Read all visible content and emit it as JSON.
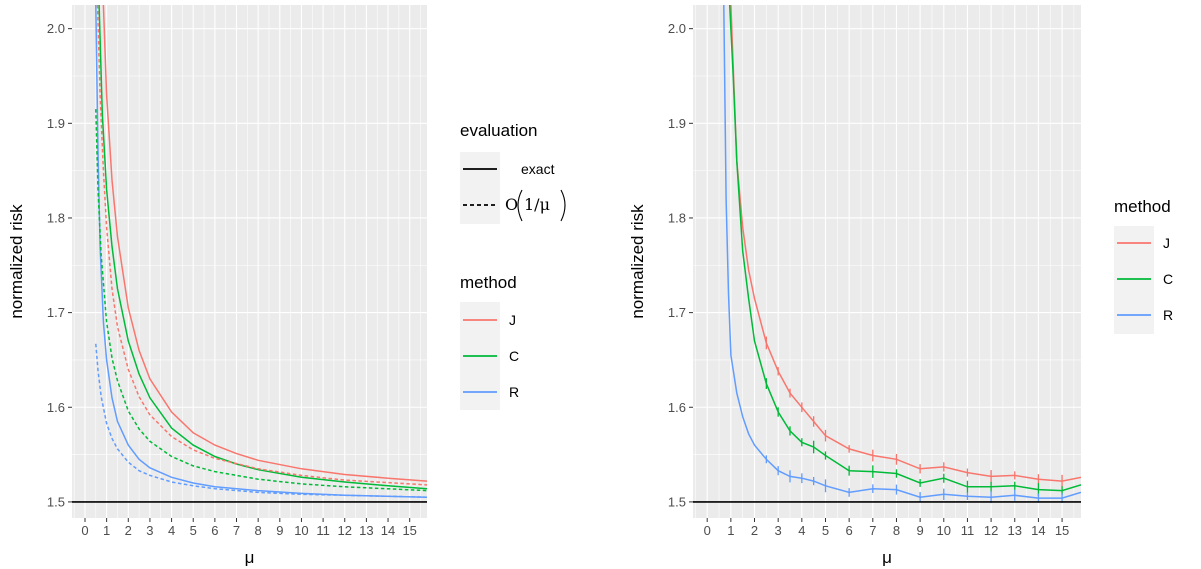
{
  "chart_data": [
    {
      "type": "line",
      "ylabel": "normalized risk",
      "xlabel": "μ",
      "xlim": [
        -0.6,
        15.8
      ],
      "ylim": [
        1.483,
        2.025
      ],
      "x_ticks": [
        "0",
        "1",
        "2",
        "3",
        "4",
        "5",
        "6",
        "7",
        "8",
        "9",
        "10",
        "11",
        "12",
        "13",
        "14",
        "15"
      ],
      "y_ticks": [
        "1.5",
        "1.6",
        "1.7",
        "1.8",
        "1.9",
        "2.0"
      ],
      "y_tick_values": [
        1.5,
        1.6,
        1.7,
        1.8,
        1.9,
        2.0
      ],
      "grid": true,
      "hline": 1.5,
      "series": [
        {
          "name": "J",
          "color": "#F8766D",
          "evaluation": "exact",
          "x": [
            0.85,
            1,
            1.25,
            1.5,
            2,
            2.5,
            3,
            4,
            5,
            6,
            7,
            8,
            10,
            12,
            14,
            15.8
          ],
          "y": [
            2.025,
            1.93,
            1.84,
            1.78,
            1.705,
            1.66,
            1.63,
            1.595,
            1.573,
            1.56,
            1.551,
            1.544,
            1.535,
            1.529,
            1.525,
            1.522
          ]
        },
        {
          "name": "C",
          "color": "#00BA38",
          "evaluation": "exact",
          "x": [
            0.65,
            0.8,
            1,
            1.25,
            1.5,
            2,
            2.5,
            3,
            4,
            5,
            6,
            7,
            8,
            10,
            12,
            14,
            15.8
          ],
          "y": [
            2.025,
            1.91,
            1.83,
            1.77,
            1.725,
            1.67,
            1.635,
            1.61,
            1.578,
            1.56,
            1.548,
            1.54,
            1.534,
            1.526,
            1.521,
            1.517,
            1.514
          ]
        },
        {
          "name": "R",
          "color": "#619CFF",
          "evaluation": "exact",
          "x": [
            0.5,
            0.6,
            0.7,
            0.85,
            1,
            1.25,
            1.5,
            2,
            2.5,
            3,
            4,
            5,
            6,
            8,
            10,
            12,
            15.8
          ],
          "y": [
            2.025,
            1.87,
            1.77,
            1.69,
            1.65,
            1.61,
            1.585,
            1.56,
            1.545,
            1.536,
            1.526,
            1.52,
            1.516,
            1.512,
            1.509,
            1.507,
            1.505
          ]
        },
        {
          "name": "J",
          "color": "#F8766D",
          "evaluation": "O(1/μ)",
          "x": [
            0.58,
            0.7,
            0.85,
            1,
            1.25,
            1.5,
            2,
            2.5,
            3,
            4,
            5,
            6,
            8,
            10,
            12,
            15.8
          ],
          "y": [
            2.025,
            1.93,
            1.85,
            1.79,
            1.725,
            1.685,
            1.64,
            1.611,
            1.592,
            1.569,
            1.555,
            1.546,
            1.535,
            1.528,
            1.523,
            1.518
          ]
        },
        {
          "name": "C",
          "color": "#00BA38",
          "evaluation": "O(1/μ)",
          "x": [
            0.5,
            0.6,
            0.75,
            1,
            1.25,
            1.5,
            2,
            2.5,
            3,
            4,
            5,
            6,
            8,
            10,
            12,
            15.8
          ],
          "y": [
            1.915,
            1.83,
            1.76,
            1.69,
            1.652,
            1.628,
            1.596,
            1.577,
            1.564,
            1.548,
            1.538,
            1.532,
            1.524,
            1.519,
            1.516,
            1.512
          ]
        },
        {
          "name": "R",
          "color": "#619CFF",
          "evaluation": "O(1/μ)",
          "x": [
            0.5,
            0.6,
            0.75,
            1,
            1.25,
            1.5,
            2,
            2.5,
            3,
            4,
            5,
            6,
            8,
            10,
            12,
            15.8
          ],
          "y": [
            1.667,
            1.639,
            1.611,
            1.583,
            1.567,
            1.556,
            1.542,
            1.533,
            1.528,
            1.521,
            1.517,
            1.514,
            1.51,
            1.508,
            1.507,
            1.505
          ]
        }
      ],
      "legends": [
        {
          "title": "evaluation",
          "entries": [
            {
              "label": "exact",
              "linetype": "solid"
            },
            {
              "label_prefix": "O",
              "label_frac": "1/μ",
              "linetype": "dashed"
            }
          ]
        },
        {
          "title": "method",
          "entries": [
            {
              "label": "J",
              "color": "#F8766D"
            },
            {
              "label": "C",
              "color": "#00BA38"
            },
            {
              "label": "R",
              "color": "#619CFF"
            }
          ]
        }
      ]
    },
    {
      "type": "line",
      "ylabel": "normalized risk",
      "xlabel": "μ",
      "xlim": [
        -0.6,
        15.8
      ],
      "ylim": [
        1.483,
        2.025
      ],
      "x_ticks": [
        "0",
        "1",
        "2",
        "3",
        "4",
        "5",
        "6",
        "7",
        "8",
        "9",
        "10",
        "11",
        "12",
        "13",
        "14",
        "15"
      ],
      "y_ticks": [
        "1.5",
        "1.6",
        "1.7",
        "1.8",
        "1.9",
        "2.0"
      ],
      "y_tick_values": [
        1.5,
        1.6,
        1.7,
        1.8,
        1.9,
        2.0
      ],
      "grid": true,
      "hline": 1.5,
      "error_bars": true,
      "series": [
        {
          "name": "J",
          "color": "#F8766D",
          "x": [
            1,
            1.25,
            1.5,
            1.75,
            2,
            2.5,
            3,
            3.5,
            4,
            4.5,
            5,
            6,
            7,
            8,
            9,
            10,
            11,
            12,
            13,
            14,
            15,
            15.8
          ],
          "y": [
            2.025,
            1.86,
            1.79,
            1.745,
            1.715,
            1.668,
            1.638,
            1.615,
            1.6,
            1.585,
            1.57,
            1.556,
            1.549,
            1.545,
            1.535,
            1.537,
            1.531,
            1.527,
            1.528,
            1.524,
            1.522,
            1.526
          ]
        },
        {
          "name": "C",
          "color": "#00BA38",
          "x": [
            0.95,
            1.1,
            1.25,
            1.5,
            1.75,
            2,
            2.5,
            3,
            3.5,
            4,
            4.5,
            5,
            6,
            7,
            8,
            9,
            10,
            11,
            12,
            13,
            14,
            15,
            15.8
          ],
          "y": [
            2.025,
            1.95,
            1.86,
            1.765,
            1.715,
            1.67,
            1.625,
            1.595,
            1.575,
            1.563,
            1.558,
            1.549,
            1.533,
            1.532,
            1.53,
            1.52,
            1.525,
            1.516,
            1.516,
            1.517,
            1.513,
            1.512,
            1.518
          ]
        },
        {
          "name": "R",
          "color": "#619CFF",
          "x": [
            0.7,
            0.8,
            0.9,
            1,
            1.25,
            1.5,
            1.75,
            2,
            2.5,
            3,
            3.5,
            4,
            4.5,
            5,
            6,
            7,
            8,
            9,
            10,
            11,
            12,
            13,
            14,
            15,
            15.8
          ],
          "y": [
            2.025,
            1.82,
            1.72,
            1.655,
            1.615,
            1.59,
            1.572,
            1.56,
            1.545,
            1.533,
            1.527,
            1.525,
            1.522,
            1.517,
            1.51,
            1.514,
            1.513,
            1.505,
            1.508,
            1.506,
            1.505,
            1.507,
            1.504,
            1.504,
            1.51
          ]
        }
      ],
      "legends": [
        {
          "title": "method",
          "entries": [
            {
              "label": "J",
              "color": "#F8766D"
            },
            {
              "label": "C",
              "color": "#00BA38"
            },
            {
              "label": "R",
              "color": "#619CFF"
            }
          ]
        }
      ]
    }
  ]
}
